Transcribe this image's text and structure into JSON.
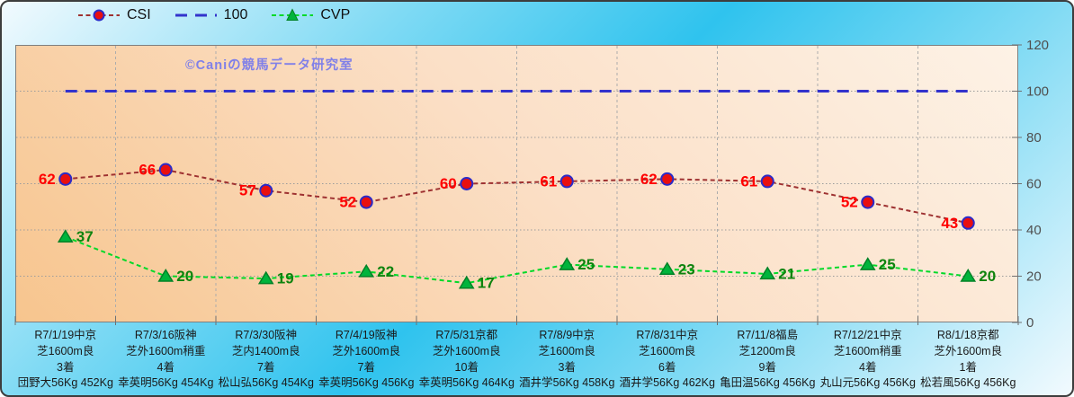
{
  "watermark": {
    "text": "©Caniの競馬データ研究室",
    "color": "#8080E8"
  },
  "colors": {
    "background_cyan": "#2FC3EE",
    "background_pale": "#F2FAFE",
    "plot_orange_deep": "#F7C58E",
    "plot_orange_pale": "#FDF2E6",
    "axis_text": "#4F4F4F",
    "category_text": "#1A1A1A",
    "gridline": "#9C9C9C"
  },
  "chart_data": {
    "type": "line",
    "title": "",
    "xlabel": "",
    "ylabel": "",
    "ylim": [
      0,
      120
    ],
    "yticks": [
      0,
      20,
      40,
      60,
      80,
      100,
      120
    ],
    "grid": true,
    "legend_position": "top",
    "categories": [
      [
        "R7/1/19中京",
        "芝1600m良",
        "3着",
        "団野大56Kg 452Kg"
      ],
      [
        "R7/3/16阪神",
        "芝外1600m稍重",
        "4着",
        "幸英明56Kg 454Kg"
      ],
      [
        "R7/3/30阪神",
        "芝内1400m良",
        "7着",
        "松山弘56Kg 454Kg"
      ],
      [
        "R7/4/19阪神",
        "芝外1600m良",
        "7着",
        "幸英明56Kg 456Kg"
      ],
      [
        "R7/5/31京都",
        "芝外1600m良",
        "10着",
        "幸英明56Kg 464Kg"
      ],
      [
        "R7/8/9中京",
        "芝1600m良",
        "3着",
        "酒井学56Kg 458Kg"
      ],
      [
        "R7/8/31中京",
        "芝1600m良",
        "6着",
        "酒井学56Kg 462Kg"
      ],
      [
        "R7/11/8福島",
        "芝1200m良",
        "9着",
        "亀田温56Kg 456Kg"
      ],
      [
        "R7/12/21中京",
        "芝1600m稍重",
        "4着",
        "丸山元56Kg 456Kg"
      ],
      [
        "R8/1/18京都",
        "芝外1600m良",
        "1着",
        "松若風56Kg 456Kg"
      ]
    ],
    "series": [
      {
        "name": "CSI",
        "marker": "circle",
        "values": [
          62,
          66,
          57,
          52,
          60,
          61,
          62,
          61,
          52,
          43
        ],
        "line_color": "#9E3131",
        "line_width": 2,
        "dash": "5 3.5",
        "marker_fill": "#E90F0F",
        "marker_edge": "#2B2BC8",
        "show_labels": true,
        "label_color": "#FF0000",
        "label_side": "left"
      },
      {
        "name": "100",
        "marker": "none",
        "values": [
          100,
          100,
          100,
          100,
          100,
          100,
          100,
          100,
          100,
          100
        ],
        "line_color": "#3333CC",
        "line_width": 3,
        "dash": "13 9",
        "show_labels": false
      },
      {
        "name": "CVP",
        "marker": "triangle",
        "values": [
          37,
          20,
          19,
          22,
          17,
          25,
          23,
          21,
          25,
          20
        ],
        "line_color": "#00D928",
        "line_width": 2,
        "dash": "5 3.5",
        "marker_fill": "#00B43C",
        "marker_edge": "#008227",
        "show_labels": true,
        "label_color": "#0E830E",
        "label_side": "right"
      }
    ]
  }
}
